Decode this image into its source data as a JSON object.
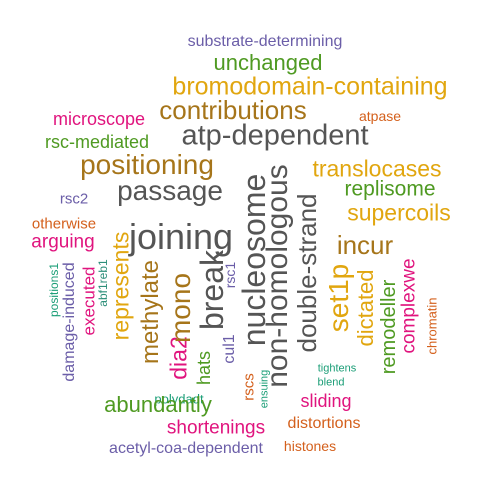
{
  "colors": {
    "purple": "#6b5ea8",
    "green": "#4f9a22",
    "orange": "#e1a60f",
    "brown": "#a6751a",
    "gray": "#555555",
    "magenta": "#e0147e",
    "rust": "#d4601c",
    "teal": "#1b9e77",
    "teal_dark": "#2d8f7a"
  },
  "words": {
    "w01": "substrate-determining",
    "w02": "unchanged",
    "w03": "bromodomain-containing",
    "w04": "contributions",
    "w05": "microscope",
    "w06": "atpase",
    "w07": "rsc-mediated",
    "w08": "atp-dependent",
    "w09": "positioning",
    "w10": "translocases",
    "w11": "passage",
    "w12": "replisome",
    "w13": "rsc2",
    "w14": "supercoils",
    "w15": "otherwise",
    "w16": "joining",
    "w17": "arguing",
    "w18": "incur",
    "w19": "nucleosome",
    "w20": "non-homologous",
    "w21": "double-strand",
    "w22": "positions1",
    "w23": "damage-induced",
    "w24": "executed",
    "w25": "abf1reb1",
    "w26": "represents",
    "w27": "methylate",
    "w28": "dia2",
    "w29": "mono",
    "w30": "break",
    "w31": "rsc1",
    "w32": "cul1",
    "w33": "hats",
    "w34": "set1p",
    "w35": "dictated",
    "w36": "remodeller",
    "w37": "complexwe",
    "w38": "chromatin",
    "w39": "polydadt",
    "w40": "ensuing",
    "w41": "rscs",
    "w42": "tightens",
    "w43": "blend",
    "w44": "sliding",
    "w45": "abundantly",
    "w46": "shortenings",
    "w47": "distortions",
    "w48": "acetyl-coa-dependent",
    "w49": "histones"
  }
}
